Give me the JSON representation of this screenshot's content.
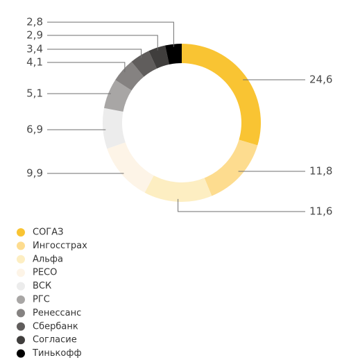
{
  "chart_data": {
    "type": "donut",
    "categories": [
      "СОГАЗ",
      "Ингосстрах",
      "Альфа",
      "РЕСО",
      "ВСК",
      "РГС",
      "Ренессанс",
      "Сбербанк",
      "Согласие",
      "Тинькофф"
    ],
    "values": [
      24.6,
      11.8,
      11.6,
      9.9,
      6.9,
      5.1,
      4.1,
      3.4,
      2.9,
      2.8
    ],
    "value_labels": [
      "24,6",
      "11,8",
      "11,6",
      "9,9",
      "6,9",
      "5,1",
      "4,1",
      "3,4",
      "2,9",
      "2,8"
    ],
    "colors": [
      "#f9c433",
      "#fddc8f",
      "#fdeec2",
      "#fdf4e7",
      "#ececec",
      "#a8a6a5",
      "#858281",
      "#605d5c",
      "#403e3d",
      "#000000"
    ]
  }
}
